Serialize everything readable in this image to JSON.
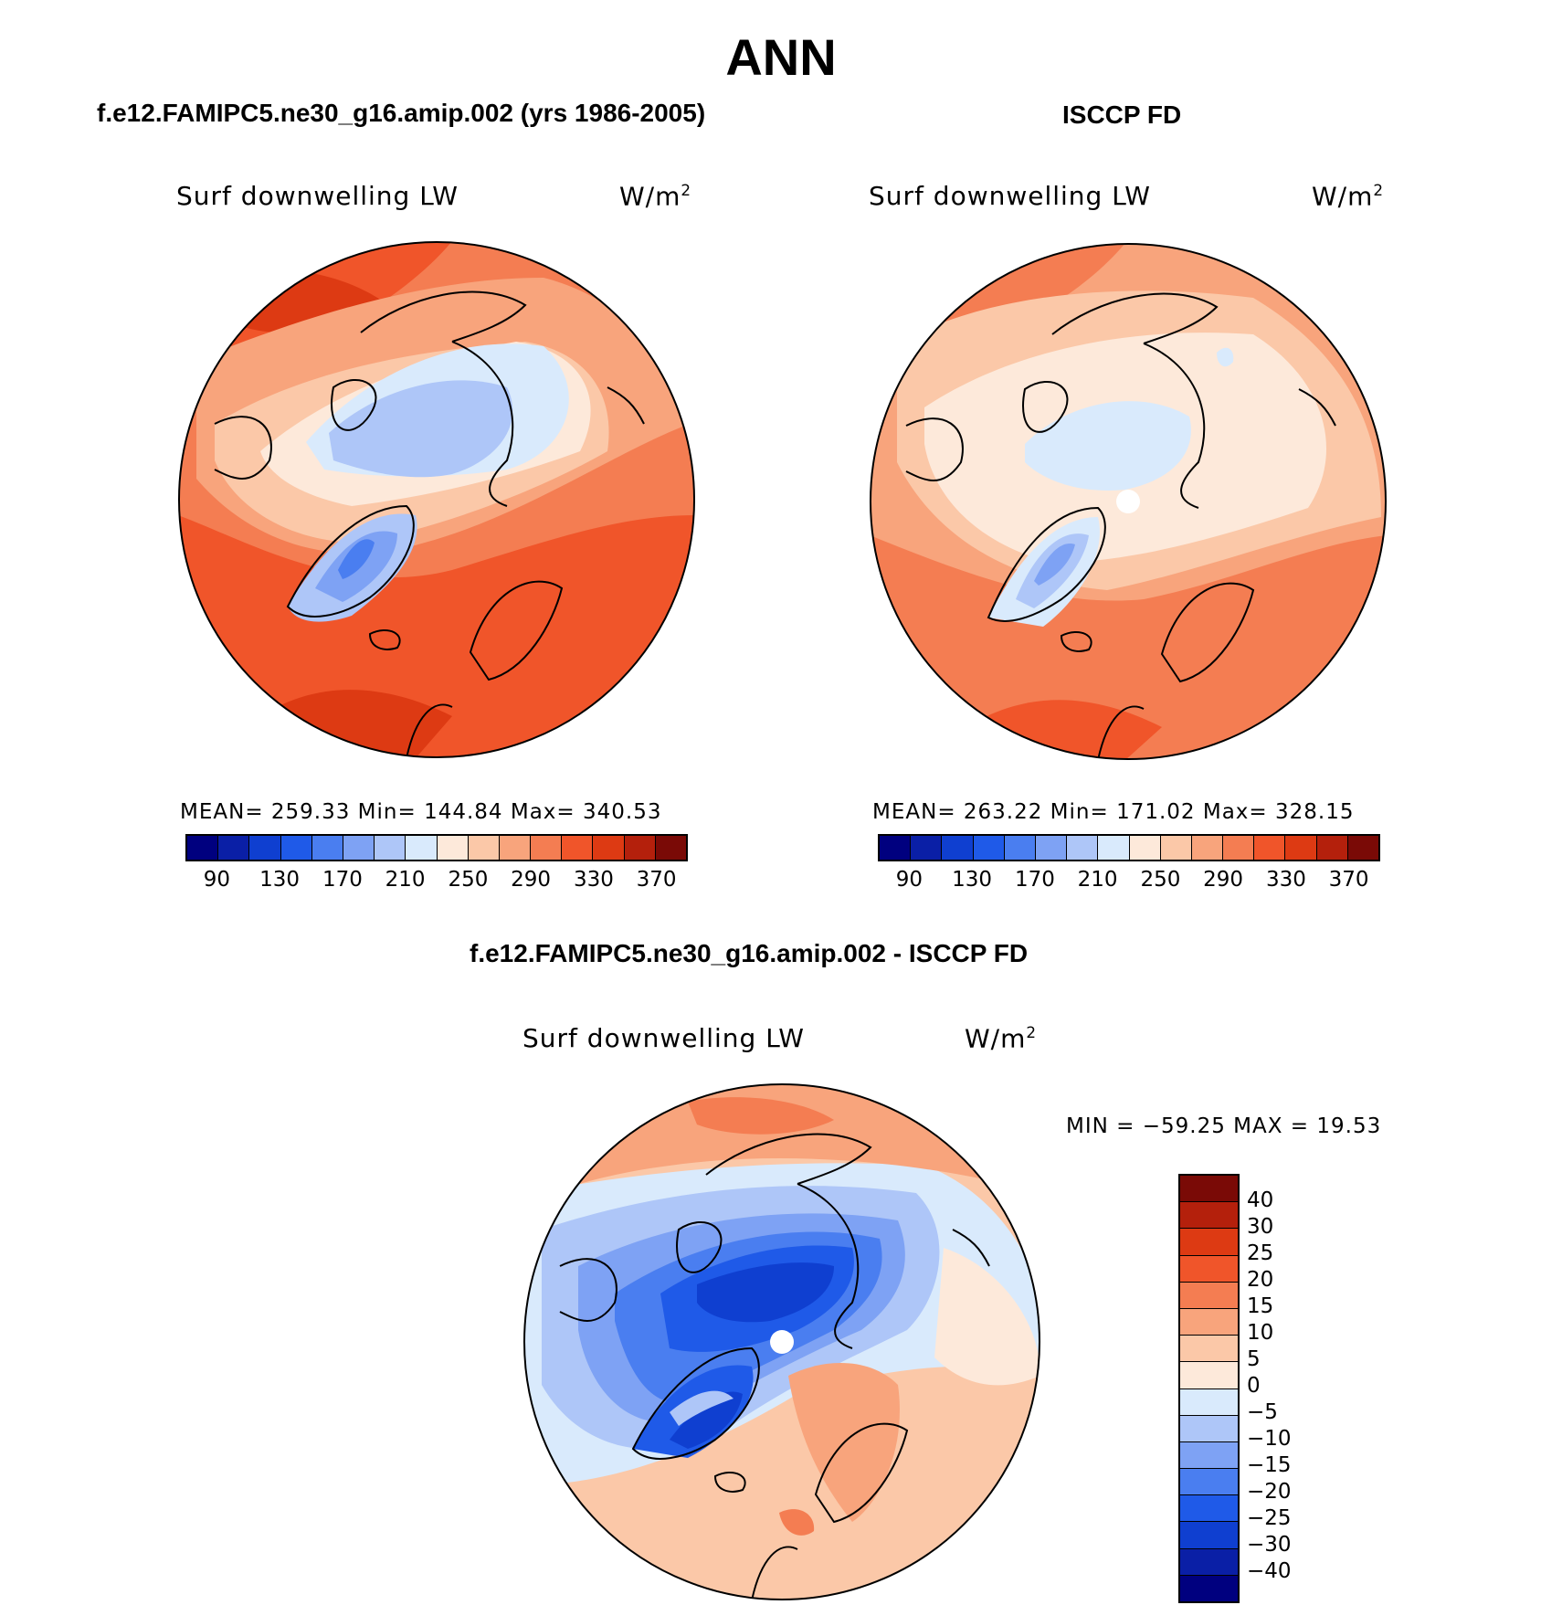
{
  "title": "ANN",
  "panels": [
    {
      "header": "f.e12.FAMIPC5.ne30_g16.amip.002 (yrs 1986-2005)",
      "variable": "Surf downwelling LW",
      "units_base": "W/m",
      "units_exp": "2",
      "stats": "MEAN= 259.33   Min= 144.84   Max= 340.53"
    },
    {
      "header": "ISCCP FD",
      "variable": "Surf downwelling LW",
      "units_base": "W/m",
      "units_exp": "2",
      "stats": "MEAN= 263.22   Min= 171.02   Max= 328.15"
    },
    {
      "header": "f.e12.FAMIPC5.ne30_g16.amip.002 - ISCCP FD",
      "variable": "Surf downwelling LW",
      "units_base": "W/m",
      "units_exp": "2",
      "stats": "MIN = −59.25 MAX =   19.53"
    }
  ],
  "colorbar_abs": {
    "colors": [
      "#00007f",
      "#0a1fa6",
      "#0f3fd0",
      "#1f5ae8",
      "#4a7ef0",
      "#7ea2f4",
      "#aec6f8",
      "#d9eafc",
      "#fde9da",
      "#fbc8a8",
      "#f8a47c",
      "#f47d52",
      "#f0552a",
      "#dd3a13",
      "#b4200c",
      "#7a0a06"
    ],
    "ticks": [
      "90",
      "130",
      "170",
      "210",
      "250",
      "290",
      "330",
      "370"
    ]
  },
  "colorbar_diff": {
    "colors": [
      "#7a0a06",
      "#b4200c",
      "#dd3a13",
      "#f0552a",
      "#f47d52",
      "#f8a47c",
      "#fbc8a8",
      "#fde9da",
      "#d9eafc",
      "#aec6f8",
      "#7ea2f4",
      "#4a7ef0",
      "#1f5ae8",
      "#0f3fd0",
      "#0a1fa6",
      "#00007f"
    ],
    "ticks": [
      "40",
      "30",
      "25",
      "20",
      "15",
      "10",
      "5",
      "0",
      "−5",
      "−10",
      "−15",
      "−20",
      "−25",
      "−30",
      "−40"
    ]
  }
}
